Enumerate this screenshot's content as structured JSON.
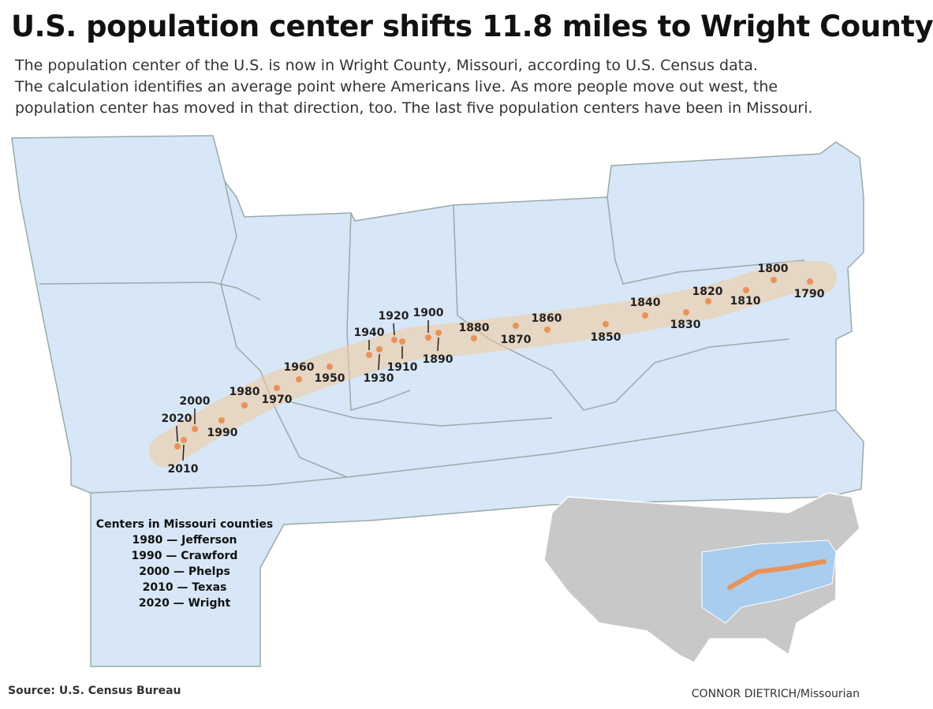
{
  "header": {
    "title": "U.S. population center shifts 11.8 miles to Wright County",
    "subtitle_lines": [
      "The population center of the U.S. is now in Wright County, Missouri, according to U.S. Census data.",
      "The calculation identifies an average point where Americans live. As more people move out west, the",
      "population center has moved in that direction, too. The last five population centers have been in Missouri."
    ]
  },
  "centers": [
    "1790",
    "1800",
    "1810",
    "1820",
    "1830",
    "1840",
    "1850",
    "1860",
    "1870",
    "1880",
    "1890",
    "1900",
    "1910",
    "1920",
    "1930",
    "1940",
    "1950",
    "1960",
    "1970",
    "1980",
    "1990",
    "2000",
    "2010",
    "2020"
  ],
  "note": {
    "title": "Centers in Missouri counties",
    "lines": [
      "1980 — Jefferson",
      "1990 — Crawford",
      "2000 — Phelps",
      "2010 — Texas",
      "2020 — Wright"
    ]
  },
  "footer": {
    "source_label": "Source:",
    "source": "U.S. Census Bureau",
    "credit_name": "CONNOR DIETRICH",
    "credit_org": "/Missourian"
  }
}
